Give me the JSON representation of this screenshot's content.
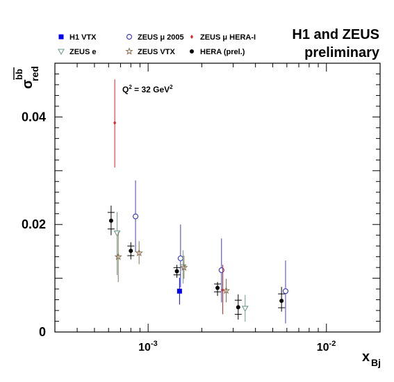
{
  "chart_data": {
    "type": "scatter",
    "title_lines": [
      "H1 and ZEUS",
      "preliminary"
    ],
    "annotation": {
      "text": "Q",
      "sup1": "2",
      "mid": " = 32 GeV",
      "sup2": "2"
    },
    "xlabel": {
      "base": "x",
      "sub": "Bj"
    },
    "ylabel": {
      "base": "σ",
      "sub": "red",
      "sup": "bb"
    },
    "xscale": "log",
    "xlim": [
      0.0003,
      0.02
    ],
    "ylim": [
      0,
      0.05
    ],
    "yticks": [
      0,
      0.02,
      0.04
    ],
    "ytick_labels": [
      "0",
      "0.02",
      "0.04"
    ],
    "xtick_labels": [
      {
        "base": "10",
        "exp": "-3"
      },
      {
        "base": "10",
        "exp": "-2"
      }
    ],
    "legend": [
      {
        "name": "H1 VTX",
        "marker": "square-filled",
        "color": "#0000ee"
      },
      {
        "name": "ZEUS μ 2005",
        "marker": "circle-open",
        "color": "#4040c0"
      },
      {
        "name": "ZEUS μ HERA-I",
        "marker": "diamond-filled",
        "color": "#e02020"
      },
      {
        "name": "ZEUS e",
        "marker": "triangle-down-open",
        "color": "#6f9c88"
      },
      {
        "name": "ZEUS VTX",
        "marker": "star-open",
        "color": "#8b6d4e"
      },
      {
        "name": "HERA (prel.)",
        "marker": "circle-filled",
        "color": "#000000"
      }
    ],
    "series": [
      {
        "name": "H1 VTX",
        "marker": "square-filled",
        "color": "#0000ee",
        "points": [
          {
            "x": 0.0015,
            "y": 0.0076,
            "lo": 0.0051,
            "hi": 0.0101
          }
        ]
      },
      {
        "name": "ZEUS μ 2005",
        "marker": "circle-open",
        "color": "#4040c0",
        "points": [
          {
            "x": 0.00085,
            "y": 0.0215,
            "lo": 0.0149,
            "hi": 0.0282
          },
          {
            "x": 0.00152,
            "y": 0.0137,
            "lo": 0.0083,
            "hi": 0.02
          },
          {
            "x": 0.00258,
            "y": 0.0115,
            "lo": 0.0055,
            "hi": 0.0174
          },
          {
            "x": 0.0059,
            "y": 0.0076,
            "lo": 0.0016,
            "hi": 0.0133
          }
        ]
      },
      {
        "name": "ZEUS μ HERA-I",
        "marker": "diamond-filled",
        "color": "#e02020",
        "points": [
          {
            "x": 0.00065,
            "y": 0.0389,
            "lo": 0.0306,
            "hi": 0.047
          },
          {
            "x": 0.00262,
            "y": 0.0078,
            "lo": 0.0033,
            "hi": 0.0125
          }
        ]
      },
      {
        "name": "ZEUS e",
        "marker": "triangle-down-open",
        "color": "#6f9c88",
        "points": [
          {
            "x": 0.00067,
            "y": 0.0184,
            "lo": 0.0106,
            "hi": 0.0223
          },
          {
            "x": 0.00157,
            "y": 0.0121,
            "lo": 0.009,
            "hi": 0.0152
          },
          {
            "x": 0.0035,
            "y": 0.0044,
            "lo": 0.0019,
            "hi": 0.0069
          }
        ]
      },
      {
        "name": "ZEUS VTX",
        "marker": "star-open",
        "color": "#8b6d4e",
        "points": [
          {
            "x": 0.00068,
            "y": 0.014,
            "lo": 0.0093,
            "hi": 0.0186
          },
          {
            "x": 0.00089,
            "y": 0.0147,
            "lo": 0.0126,
            "hi": 0.0169
          },
          {
            "x": 0.00159,
            "y": 0.012,
            "lo": 0.0099,
            "hi": 0.0142
          },
          {
            "x": 0.00274,
            "y": 0.0077,
            "lo": 0.0055,
            "hi": 0.0099
          }
        ]
      },
      {
        "name": "HERA (prel.)",
        "marker": "circle-filled",
        "color": "#000000",
        "points": [
          {
            "x": 0.00062,
            "y": 0.0207,
            "lo": 0.018,
            "hi": 0.0235
          },
          {
            "x": 0.0008,
            "y": 0.0151,
            "lo": 0.0135,
            "hi": 0.0167
          },
          {
            "x": 0.00145,
            "y": 0.0113,
            "lo": 0.0101,
            "hi": 0.0125
          },
          {
            "x": 0.00245,
            "y": 0.0082,
            "lo": 0.0067,
            "hi": 0.0093
          },
          {
            "x": 0.0032,
            "y": 0.0046,
            "lo": 0.0023,
            "hi": 0.007
          },
          {
            "x": 0.0056,
            "y": 0.0058,
            "lo": 0.0038,
            "hi": 0.0084
          }
        ]
      }
    ]
  }
}
